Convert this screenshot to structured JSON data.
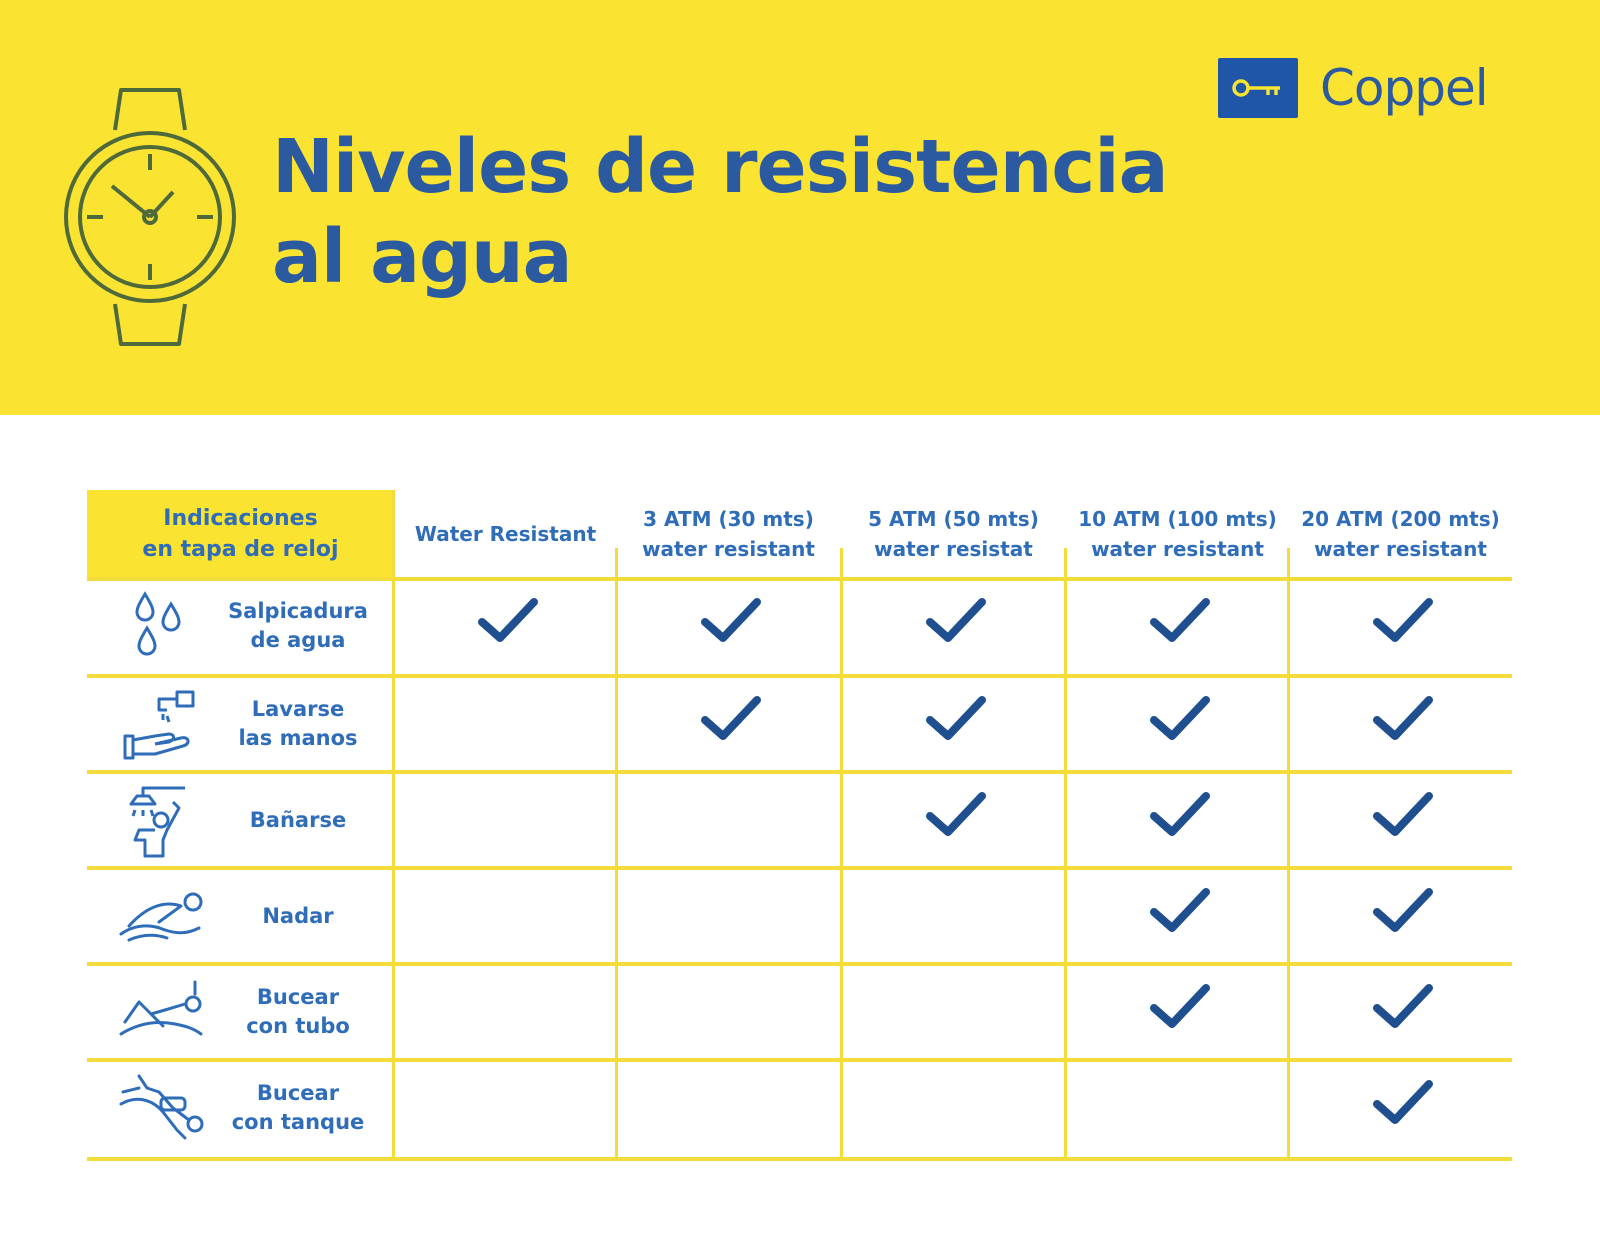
{
  "header": {
    "title_line1": "Niveles de resistencia",
    "title_line2": "al agua",
    "brand": "Coppel",
    "brand_color": "#2b5aa0",
    "background_color": "#fbe332",
    "icon": "wristwatch-icon"
  },
  "table": {
    "first_header": {
      "line1": "Indicaciones",
      "line2": "en tapa de reloj"
    },
    "columns": [
      {
        "line1": "Water Resistant",
        "line2": ""
      },
      {
        "line1": "3 ATM (30 mts)",
        "line2": "water resistant"
      },
      {
        "line1": "5 ATM (50 mts)",
        "line2": "water resistat"
      },
      {
        "line1": "10 ATM (100 mts)",
        "line2": "water resistant"
      },
      {
        "line1": "20 ATM (200 mts)",
        "line2": "water resistant"
      }
    ],
    "rows": [
      {
        "line1": "Salpicadura",
        "line2": "de agua",
        "icon": "water-drops-icon",
        "checks": [
          true,
          true,
          true,
          true,
          true
        ]
      },
      {
        "line1": "Lavarse",
        "line2": "las manos",
        "icon": "hand-washing-icon",
        "checks": [
          false,
          true,
          true,
          true,
          true
        ]
      },
      {
        "line1": "Bañarse",
        "line2": "",
        "icon": "shower-icon",
        "checks": [
          false,
          false,
          true,
          true,
          true
        ]
      },
      {
        "line1": "Nadar",
        "line2": "",
        "icon": "swimmer-icon",
        "checks": [
          false,
          false,
          false,
          true,
          true
        ]
      },
      {
        "line1": "Bucear",
        "line2": "con tubo",
        "icon": "snorkel-icon",
        "checks": [
          false,
          false,
          false,
          true,
          true
        ]
      },
      {
        "line1": "Bucear",
        "line2": "con tanque",
        "icon": "scuba-diver-icon",
        "checks": [
          false,
          false,
          false,
          false,
          true
        ]
      }
    ],
    "check_color": "#1f4f8f",
    "grid_color": "#f3dc3a"
  }
}
